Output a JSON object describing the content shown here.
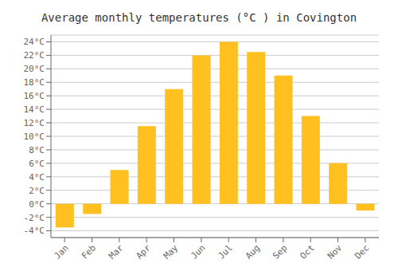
{
  "chart_data": {
    "type": "bar",
    "title": "Average monthly temperatures (°C ) in Covington",
    "categories": [
      "Jan",
      "Feb",
      "Mar",
      "Apr",
      "May",
      "Jun",
      "Jul",
      "Aug",
      "Sep",
      "Oct",
      "Nov",
      "Dec"
    ],
    "values": [
      -3.5,
      -1.5,
      5.0,
      11.5,
      17.0,
      22.0,
      24.0,
      22.5,
      19.0,
      13.0,
      6.0,
      -1.0
    ],
    "color": "#FFC020",
    "ylim": [
      -5,
      25
    ],
    "yticks": [
      {
        "value": -4,
        "label": "-4°C"
      },
      {
        "value": -2,
        "label": "-2°C"
      },
      {
        "value": 0,
        "label": "0°C"
      },
      {
        "value": 2,
        "label": "2°C"
      },
      {
        "value": 4,
        "label": "4°C"
      },
      {
        "value": 6,
        "label": "6°C"
      },
      {
        "value": 8,
        "label": "8°C"
      },
      {
        "value": 10,
        "label": "10°C"
      },
      {
        "value": 12,
        "label": "12°C"
      },
      {
        "value": 14,
        "label": "14°C"
      },
      {
        "value": 16,
        "label": "16°C"
      },
      {
        "value": 18,
        "label": "18°C"
      },
      {
        "value": 20,
        "label": "20°C"
      },
      {
        "value": 22,
        "label": "22°C"
      },
      {
        "value": 24,
        "label": "24°C"
      }
    ],
    "grid": true
  }
}
